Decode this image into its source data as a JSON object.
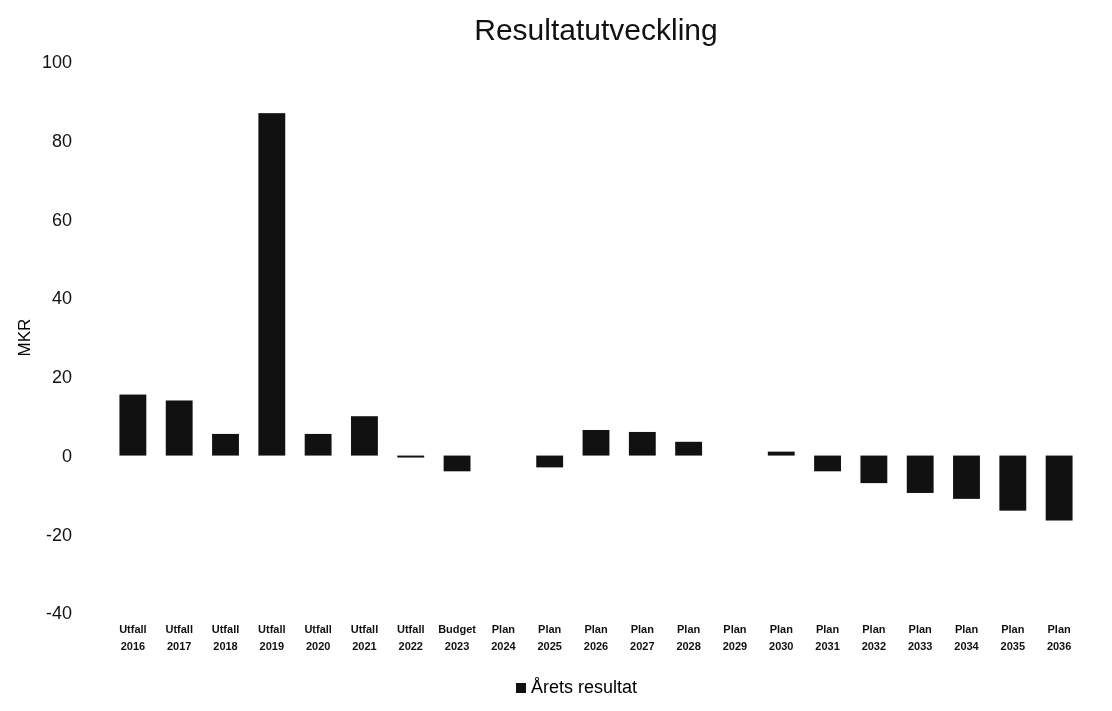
{
  "chart_data": {
    "type": "bar",
    "title": "Resultatutveckling",
    "ylabel": "MKR",
    "categories": [
      "Utfall 2016",
      "Utfall 2017",
      "Utfall 2018",
      "Utfall 2019",
      "Utfall 2020",
      "Utfall 2021",
      "Utfall 2022",
      "Budget 2023",
      "Plan 2024",
      "Plan 2025",
      "Plan 2026",
      "Plan 2027",
      "Plan 2028",
      "Plan 2029",
      "Plan 2030",
      "Plan 2031",
      "Plan 2032",
      "Plan 2033",
      "Plan 2034",
      "Plan 2035",
      "Plan 2036"
    ],
    "series": [
      {
        "name": "Årets resultat",
        "color": "#111111",
        "values": [
          15.5,
          14,
          5.5,
          87,
          5.5,
          10,
          -0.5,
          -4,
          0,
          -3,
          6.5,
          6,
          3.5,
          0,
          1,
          -4,
          -7,
          -9.5,
          -11,
          -14,
          -16.5
        ]
      }
    ],
    "ylim": [
      -40,
      100
    ],
    "yticks": [
      -40,
      -20,
      0,
      20,
      40,
      60,
      80,
      100
    ],
    "grid": false,
    "legend": "bottom"
  }
}
